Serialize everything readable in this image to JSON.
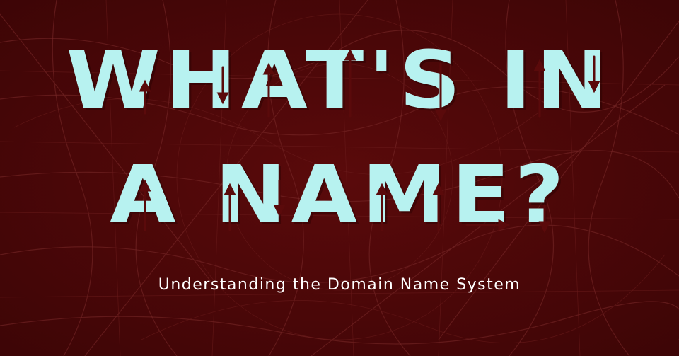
{
  "banner": {
    "title_line_1": "What's in",
    "title_line_2": "a name?",
    "subtitle": "Understanding the Domain Name System"
  },
  "colors": {
    "background": "#4a0708",
    "map_lines": "#7a2a2a",
    "title": "#b7f2f0",
    "arrows": "#5a0a0b",
    "subtitle": "#ffffff"
  },
  "decoration": {
    "background_icon": "street-map-pattern",
    "letter_icon": "arrow-icon"
  }
}
